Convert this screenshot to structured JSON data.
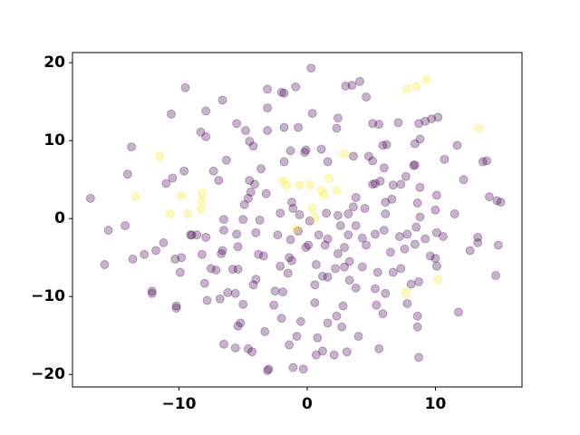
{
  "chart_data": {
    "type": "scatter",
    "xlim": [
      -18.3,
      16.75
    ],
    "ylim": [
      -21.6,
      21.3
    ],
    "xticks": [
      {
        "value": -10,
        "label": "−10"
      },
      0,
      10
    ],
    "yticks": [
      {
        "value": -20,
        "label": "−20"
      },
      {
        "value": -10,
        "label": "−10"
      },
      0,
      10,
      20
    ],
    "grid": false,
    "opacity": 0.3,
    "series": [
      {
        "color": "#440154",
        "x": [
          -16.9,
          -15.5,
          -15.8,
          -14.0,
          -13.7,
          -14.2,
          -13.6,
          -12.7,
          -11.8,
          -11.2,
          -12.1,
          -12.1,
          -11.0,
          -10.5,
          -10.6,
          -9.5,
          -9.6,
          -10.3,
          -9.8,
          -9.9,
          -10.2,
          -10.2,
          -8.6,
          -9.1,
          -8.2,
          -7.5,
          -8.0,
          -7.1,
          -7.8,
          -6.8,
          -6.2,
          -5.6,
          -8.3,
          -7.9,
          -7.9,
          -6.6,
          -5.5,
          -4.8,
          -7.3,
          -6.9,
          -6.3,
          -6.5,
          -6.5,
          -6.6,
          -6.7,
          -5.5,
          -5.4,
          -5.0,
          -4.9,
          -4.6,
          -4.4,
          -4.1,
          -4.5,
          -3.2,
          -3.7,
          -4.0,
          -3.8,
          -4.0,
          -4.2,
          -5.0,
          -5.2,
          -5.4,
          -5.6,
          -4.6,
          -4.3,
          -3.3,
          -2.6,
          -2.0,
          -3.1,
          -3.0,
          -1.1,
          -0.3,
          -6.5,
          -5.8,
          -5.4,
          -4.5,
          -4.2,
          -3.6,
          -3.1,
          -3.1,
          -3.1,
          -2.0,
          -1.8,
          -1.8,
          -1.3,
          -1.8,
          -0.7,
          -0.1,
          -0.2,
          1.1,
          0.4,
          0.3,
          -0.9,
          -1.2,
          -2.1,
          -1.1,
          0.2,
          -2.3,
          -1.3,
          -0.1,
          0.1,
          -1.4,
          -1.2,
          -1.5,
          -2.5,
          -1.9,
          0.6,
          0.6,
          1.2,
          1.6,
          1.4,
          2.4,
          2.9,
          3.2,
          2.2,
          2.9,
          3.3,
          3.8,
          2.8,
          2.7,
          2.3,
          1.6,
          3.1,
          4.0,
          2.1,
          1.2,
          0.7,
          0.8,
          -0.5,
          -0.8,
          -1.4,
          2.4,
          2.6,
          3.6,
          3.8,
          3.8,
          4.3,
          5.3,
          4.6,
          5.3,
          5.1,
          6.1,
          6.6,
          6.7,
          7.3,
          7.7,
          5.1,
          5.7,
          6.0,
          6.2,
          5.9,
          4.8,
          2.4,
          2.3,
          3.6,
          1.6,
          3.0,
          3.5,
          4.1,
          4.6,
          5.1,
          5.6,
          7.1,
          8.4,
          8.8,
          9.2,
          8.7,
          10.2,
          9.7,
          8.3,
          8.4,
          8.8,
          8.6,
          8.8,
          8.5,
          7.2,
          7.6,
          8.4,
          9.6,
          10.0,
          9.2,
          10.1,
          10.6,
          10.0,
          10.1,
          10.7,
          11.7,
          12.2,
          11.5,
          12.7,
          13.3,
          13.3,
          13.7,
          14.0,
          14.2,
          14.8,
          15.1,
          14.9,
          14.7,
          11.8,
          8.6,
          8.6,
          8.7,
          8.1,
          7.8,
          8.7,
          7.3,
          6.7,
          5.3,
          6.1,
          5.9,
          5.4,
          5.6,
          4.3,
          3.3,
          0.7,
          0.9,
          1.6,
          -9.0,
          -7.9,
          -3.4,
          -2.1,
          -0.6,
          -0.7,
          1.5,
          3.2,
          6.1,
          6.0,
          6.5,
          7.8,
          10.1,
          5.5,
          4.5
        ],
        "values": [
          2.6,
          -1.5,
          -5.9,
          5.7,
          9.2,
          -0.9,
          -5.2,
          -4.6,
          -4.1,
          -3.1,
          -9.3,
          -9.6,
          4.5,
          5.2,
          13.4,
          16.8,
          6.1,
          -5.2,
          -5.0,
          -6.9,
          -11.5,
          -11.2,
          -2.1,
          -2.1,
          -4.6,
          -6.4,
          -8.3,
          -6.6,
          -10.5,
          -10.3,
          -9.5,
          -9.6,
          11.1,
          10.5,
          13.8,
          15.2,
          12.2,
          11.3,
          6.1,
          4.9,
          7.5,
          -0.1,
          -1.5,
          -4.1,
          -4.5,
          -2.0,
          -3.6,
          -0.1,
          1.8,
          2.6,
          3.4,
          4.4,
          4.9,
          3.2,
          -0.2,
          -1.8,
          -4.6,
          -7.8,
          -8.5,
          -11.0,
          -13.4,
          -13.8,
          -16.6,
          -16.7,
          -17.1,
          -14.5,
          -11.1,
          -12.8,
          -19.5,
          -19.3,
          -19.1,
          -19.3,
          -16.1,
          -6.5,
          -6.5,
          9.9,
          9.3,
          6.4,
          11.3,
          16.6,
          14.2,
          16.2,
          16.1,
          11.7,
          8.7,
          7.3,
          11.7,
          8.8,
          8.5,
          8.9,
          13.5,
          19.3,
          16.9,
          2.1,
          0.7,
          1.3,
          -0.3,
          -2.1,
          -2.7,
          -3.7,
          -3.4,
          -5.0,
          -5.4,
          -7.0,
          -9.3,
          -9.4,
          -8.5,
          -10.8,
          -7.4,
          -7.5,
          -3.4,
          -4.5,
          -3.7,
          -2.1,
          -6.4,
          -6.2,
          -7.9,
          -8.9,
          -11.2,
          -13.9,
          -12.5,
          -13.4,
          -17.1,
          -15.1,
          -17.5,
          -17.0,
          -17.5,
          -15.3,
          -13.2,
          -15.1,
          -16.2,
          0.4,
          -0.9,
          1.5,
          -0.9,
          2.7,
          -2.5,
          -2.0,
          -3.4,
          4.5,
          4.4,
          2.1,
          2.5,
          4.3,
          4.4,
          5.4,
          7.4,
          4.8,
          6.5,
          9.5,
          9.4,
          8.0,
          12.9,
          11.6,
          8.0,
          7.3,
          17.0,
          17.1,
          17.6,
          15.6,
          12.2,
          12.1,
          12.3,
          9.6,
          10.2,
          12.5,
          12.2,
          13.0,
          12.8,
          6.8,
          6.9,
          4.0,
          2.0,
          0.2,
          -1.1,
          -2.3,
          -3.9,
          -3.3,
          -4.8,
          -5.1,
          -2.6,
          -1.8,
          -2.3,
          1.1,
          3.0,
          7.6,
          9.4,
          5.0,
          0.6,
          -4.1,
          -2.4,
          -3.1,
          7.3,
          7.4,
          2.8,
          2.3,
          2.1,
          -3.4,
          -7.3,
          -12.0,
          -12.5,
          -13.9,
          -17.8,
          -8.4,
          -10.9,
          -8.1,
          -6.4,
          -6.9,
          -9.0,
          -9.6,
          -12.2,
          -11.1,
          -16.7,
          -6.2,
          -5.5,
          -5.9,
          -2.1,
          -2.6,
          -2.1,
          -2.4,
          -4.8,
          -6.1,
          0.5,
          -1.6,
          0.7,
          0.6,
          0.6,
          -1.5,
          -4.3,
          -2.0,
          -6.1,
          -6.9,
          1.3
        ]
      },
      {
        "color": "#fde725",
        "x": [
          -11.5,
          -13.4,
          -10.7,
          -9.3,
          -9.8,
          -8.2,
          -8.2,
          -8.3,
          -1.9,
          -1.6,
          -0.6,
          0.2,
          1.1,
          1.7,
          1.3,
          2.3,
          0.4,
          0.6,
          -0.9,
          7.8,
          8.5,
          9.3,
          13.4,
          10.2,
          7.7,
          2.9
        ],
        "values": [
          8.0,
          2.8,
          0.6,
          0.6,
          2.9,
          3.3,
          2.3,
          1.2,
          4.9,
          4.3,
          4.3,
          4.3,
          3.6,
          5.2,
          3.1,
          3.6,
          1.3,
          0.1,
          -1.3,
          16.6,
          17.0,
          17.8,
          11.6,
          -7.8,
          -9.5,
          8.3
        ]
      }
    ]
  }
}
